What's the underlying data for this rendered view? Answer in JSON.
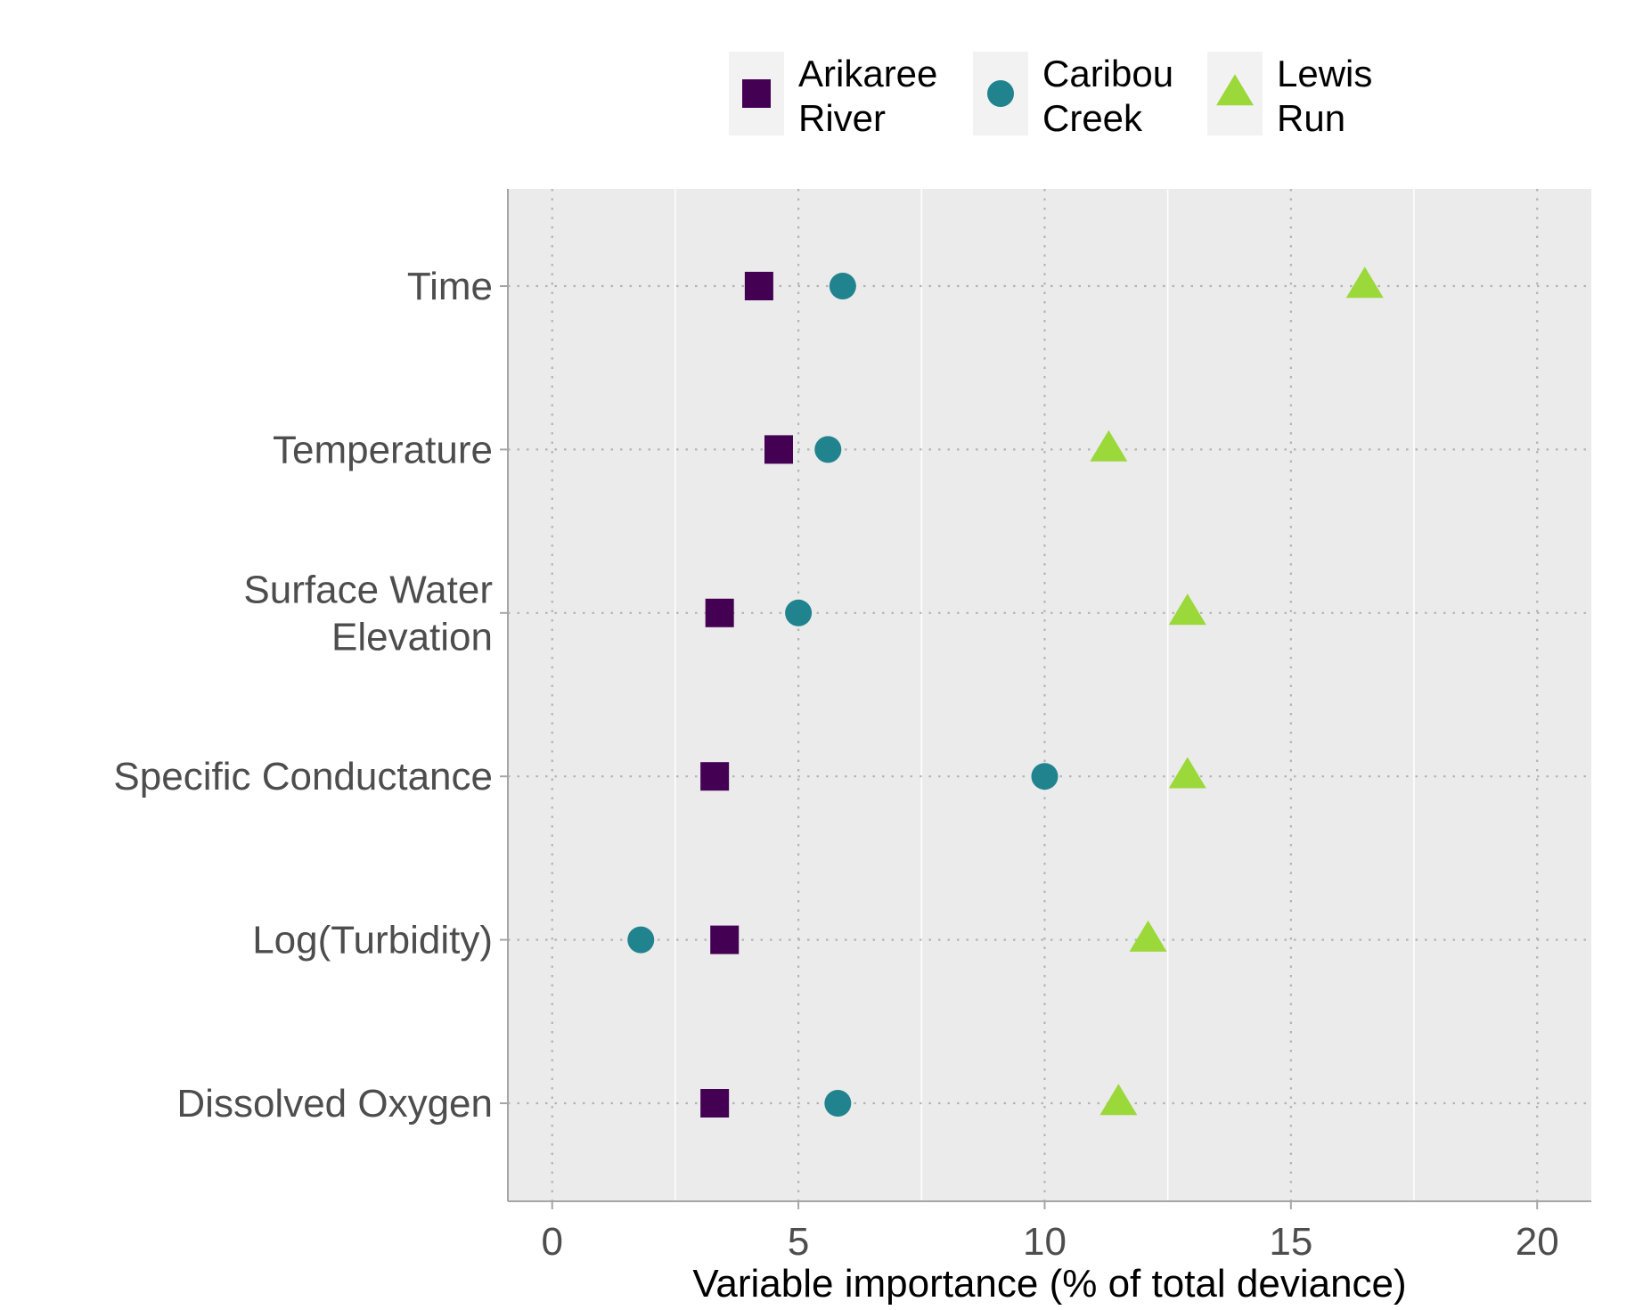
{
  "chart_data": {
    "type": "scatter",
    "title": "",
    "xlabel": "Variable importance (% of total deviance)",
    "ylabel": "",
    "xlim": [
      -0.9,
      21.1
    ],
    "x_ticks": [
      0,
      5,
      10,
      15,
      20
    ],
    "categories": [
      [
        "Time"
      ],
      [
        "Temperature"
      ],
      [
        "Surface Water",
        "Elevation"
      ],
      [
        "Specific Conductance"
      ],
      [
        "Log(Turbidity)"
      ],
      [
        "Dissolved Oxygen"
      ]
    ],
    "grid": true,
    "legend_position": "top",
    "series": [
      {
        "name": [
          "Arikaree",
          "River"
        ],
        "shape": "square",
        "color": "#440154",
        "values": [
          4.2,
          4.6,
          3.4,
          3.3,
          3.5,
          3.3
        ]
      },
      {
        "name": [
          "Caribou",
          "Creek"
        ],
        "shape": "circle",
        "color": "#21838e",
        "values": [
          5.9,
          5.6,
          5.0,
          10.0,
          1.8,
          5.8
        ]
      },
      {
        "name": [
          "Lewis",
          "Run"
        ],
        "shape": "triangle",
        "color": "#9bd83a",
        "values": [
          16.5,
          11.3,
          12.9,
          12.9,
          12.1,
          11.5
        ]
      }
    ]
  }
}
